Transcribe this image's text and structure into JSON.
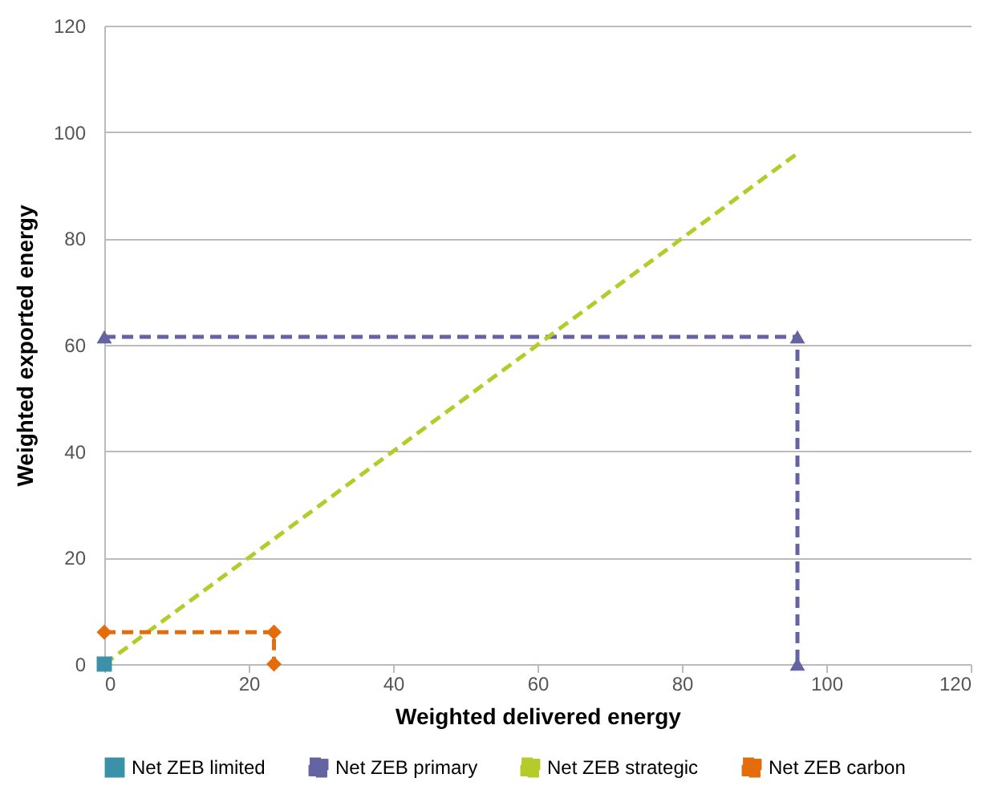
{
  "chart_data": {
    "type": "line",
    "xlabel": "Weighted delivered energy",
    "ylabel": "Weighted exported energy",
    "xlim": [
      0,
      120
    ],
    "xticks": [
      0,
      20,
      40,
      60,
      80,
      100,
      120
    ],
    "ylim": [
      0,
      120
    ],
    "yticks": [
      0,
      20,
      40,
      60,
      80,
      100,
      120
    ],
    "grid": "y",
    "legend": "bottom",
    "series": [
      {
        "name": "Net ZEB limited",
        "color": "#3b92a8",
        "x": [
          0
        ],
        "values": [
          0
        ],
        "marker": "square",
        "line_style": "none"
      },
      {
        "name": "Net ZEB primary",
        "color": "#6464a2",
        "x": [
          0,
          96,
          96
        ],
        "values": [
          61.5,
          61.5,
          0
        ],
        "marker": "triangle",
        "line_style": "dashed"
      },
      {
        "name": "Net ZEB strategic",
        "color": "#b5cb2a",
        "x": [
          0,
          96
        ],
        "values": [
          0,
          96
        ],
        "marker": "none",
        "line_style": "dashed"
      },
      {
        "name": "Net ZEB carbon",
        "color": "#e46c0a",
        "x": [
          0,
          23.5,
          23.5
        ],
        "values": [
          6,
          6,
          0
        ],
        "marker": "diamond",
        "line_style": "dashed"
      }
    ]
  }
}
